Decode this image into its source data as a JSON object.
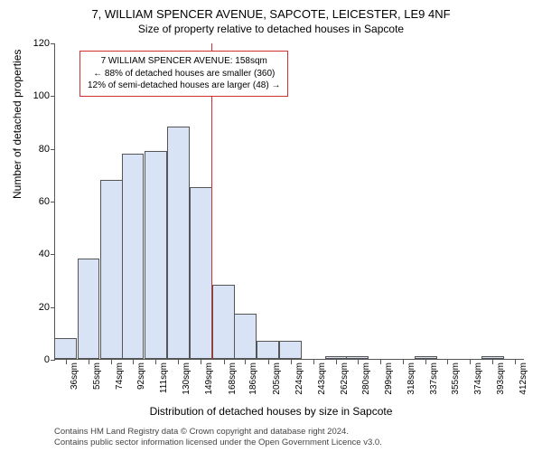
{
  "header": {
    "title": "7, WILLIAM SPENCER AVENUE, SAPCOTE, LEICESTER, LE9 4NF",
    "subtitle": "Size of property relative to detached houses in Sapcote"
  },
  "chart": {
    "type": "histogram",
    "ylabel": "Number of detached properties",
    "xlabel": "Distribution of detached houses by size in Sapcote",
    "background_color": "#ffffff",
    "axis_color": "#555555",
    "bar_fill": "#d8e4f5",
    "bar_border": "#555555",
    "refline_color": "#d03030",
    "refline_x": 158,
    "xlim": [
      27,
      420
    ],
    "ylim": [
      0,
      120
    ],
    "yticks": [
      0,
      20,
      40,
      60,
      80,
      100,
      120
    ],
    "xtick_labels": [
      "36sqm",
      "55sqm",
      "74sqm",
      "92sqm",
      "111sqm",
      "130sqm",
      "149sqm",
      "168sqm",
      "186sqm",
      "205sqm",
      "224sqm",
      "243sqm",
      "262sqm",
      "280sqm",
      "299sqm",
      "318sqm",
      "337sqm",
      "355sqm",
      "374sqm",
      "393sqm",
      "412sqm"
    ],
    "xtick_positions": [
      36,
      55,
      74,
      92,
      111,
      130,
      149,
      168,
      186,
      205,
      224,
      243,
      262,
      280,
      299,
      318,
      337,
      355,
      374,
      393,
      412
    ],
    "bar_width_units": 18.8,
    "bins": [
      {
        "x": 36,
        "count": 8
      },
      {
        "x": 55,
        "count": 38
      },
      {
        "x": 74,
        "count": 68
      },
      {
        "x": 92,
        "count": 78
      },
      {
        "x": 111,
        "count": 79
      },
      {
        "x": 130,
        "count": 88
      },
      {
        "x": 149,
        "count": 65
      },
      {
        "x": 168,
        "count": 28
      },
      {
        "x": 186,
        "count": 17
      },
      {
        "x": 205,
        "count": 7
      },
      {
        "x": 224,
        "count": 7
      },
      {
        "x": 243,
        "count": 0
      },
      {
        "x": 262,
        "count": 1
      },
      {
        "x": 280,
        "count": 1
      },
      {
        "x": 299,
        "count": 0
      },
      {
        "x": 318,
        "count": 0
      },
      {
        "x": 337,
        "count": 1
      },
      {
        "x": 355,
        "count": 0
      },
      {
        "x": 374,
        "count": 0
      },
      {
        "x": 393,
        "count": 1
      },
      {
        "x": 412,
        "count": 0
      }
    ]
  },
  "infobox": {
    "line1": "7 WILLIAM SPENCER AVENUE: 158sqm",
    "line2": "← 88% of detached houses are smaller (360)",
    "line3": "12% of semi-detached houses are larger (48) →",
    "border_color": "#d03030",
    "background": "#ffffff",
    "fontsize": 10
  },
  "attribution": {
    "line1": "Contains HM Land Registry data © Crown copyright and database right 2024.",
    "line2": "Contains public sector information licensed under the Open Government Licence v3.0.",
    "text_color": "#444444"
  }
}
